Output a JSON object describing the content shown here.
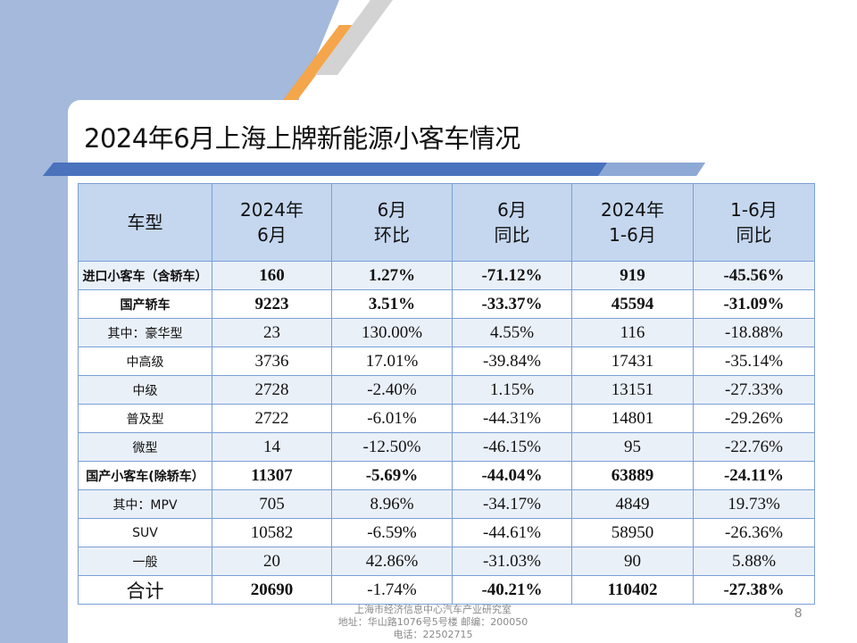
{
  "title": "2024年6月上海上牌新能源小客车情况",
  "table": {
    "headers": [
      [
        "车型"
      ],
      [
        "2024年",
        "6月"
      ],
      [
        "6月",
        "环比"
      ],
      [
        "6月",
        "同比"
      ],
      [
        "2024年",
        "1-6月"
      ],
      [
        "1-6月",
        "同比"
      ]
    ],
    "rows": [
      {
        "cells": [
          "进口小客车（含轿车）",
          "160",
          "1.27%",
          "-71.12%",
          "919",
          "-45.56%"
        ]
      },
      {
        "cells": [
          "国产轿车",
          "9223",
          "3.51%",
          "-33.37%",
          "45594",
          "-31.09%"
        ]
      },
      {
        "cells": [
          "其中：豪华型",
          "23",
          "130.00%",
          "4.55%",
          "116",
          "-18.88%"
        ]
      },
      {
        "cells": [
          "中高级",
          "3736",
          "17.01%",
          "-39.84%",
          "17431",
          "-35.14%"
        ]
      },
      {
        "cells": [
          "中级",
          "2728",
          "-2.40%",
          "1.15%",
          "13151",
          "-27.33%"
        ]
      },
      {
        "cells": [
          "普及型",
          "2722",
          "-6.01%",
          "-44.31%",
          "14801",
          "-29.26%"
        ]
      },
      {
        "cells": [
          "微型",
          "14",
          "-12.50%",
          "-46.15%",
          "95",
          "-22.76%"
        ]
      },
      {
        "cells": [
          "国产小客车(除轿车）",
          "11307",
          "-5.69%",
          "-44.04%",
          "63889",
          "-24.11%"
        ]
      },
      {
        "cells": [
          "其中：MPV",
          "705",
          "8.96%",
          "-34.17%",
          "4849",
          "19.73%"
        ]
      },
      {
        "cells": [
          "SUV",
          "10582",
          "-6.59%",
          "-44.61%",
          "58950",
          "-26.36%"
        ]
      },
      {
        "cells": [
          "一般",
          "20",
          "42.86%",
          "-31.03%",
          "90",
          "5.88%"
        ]
      },
      {
        "cells": [
          "合计",
          "20690",
          "-1.74%",
          "-40.21%",
          "110402",
          "-27.38%"
        ]
      }
    ]
  },
  "footer": {
    "line1": "上海市经济信息中心汽车产业研究室",
    "line2": "地址：华山路1076号5号楼    邮编：200050",
    "line3": "电话：22502715"
  },
  "page_number": "8",
  "colors": {
    "left_panel": "#a4b9db",
    "header_fill": "#c5d7ef",
    "stripe_fill": "#eaf0f8",
    "border": "#7a9fd6",
    "accent_orange": "#f5a54a",
    "accent_blue": "#4a72bd"
  }
}
